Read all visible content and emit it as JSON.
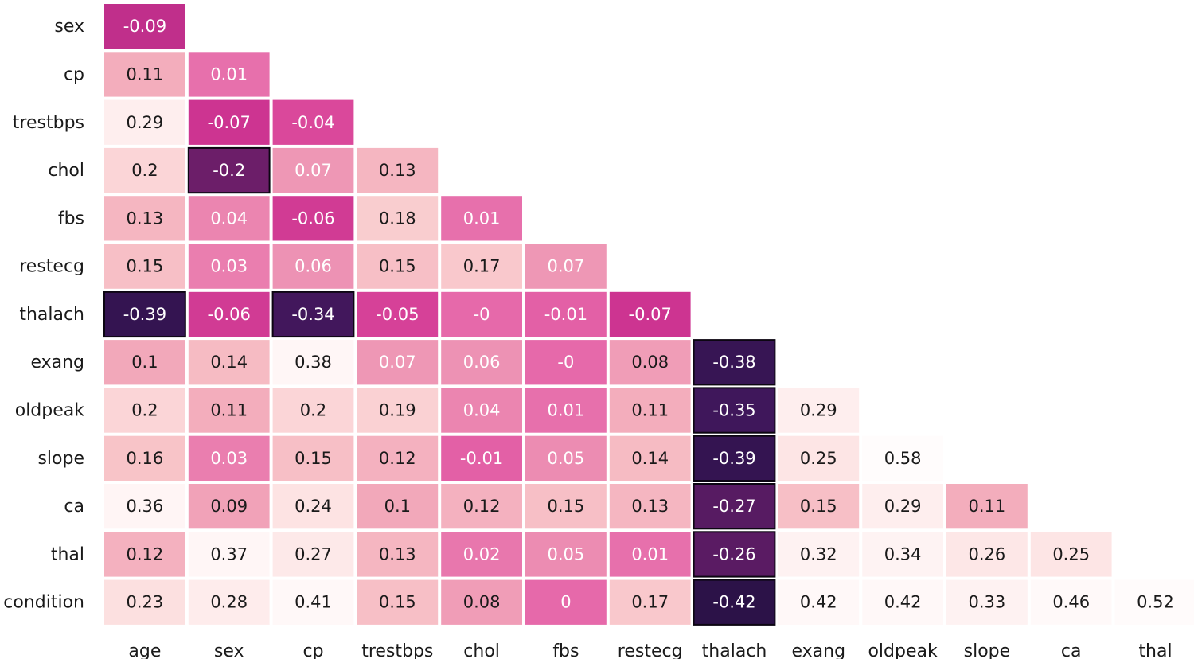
{
  "chart_data": {
    "type": "heatmap",
    "title": "",
    "xlabel": "",
    "ylabel": "",
    "layout": "lower-triangle",
    "row_labels": [
      "sex",
      "cp",
      "trestbps",
      "chol",
      "fbs",
      "restecg",
      "thalach",
      "exang",
      "oldpeak",
      "slope",
      "ca",
      "thal",
      "condition"
    ],
    "col_labels": [
      "age",
      "sex",
      "cp",
      "trestbps",
      "chol",
      "fbs",
      "restecg",
      "thalach",
      "exang",
      "oldpeak",
      "slope",
      "ca",
      "thal"
    ],
    "cells": [
      [
        "-0.09"
      ],
      [
        "0.11",
        "0.01"
      ],
      [
        "0.29",
        "-0.07",
        "-0.04"
      ],
      [
        "0.2",
        "-0.2",
        "0.07",
        "0.13"
      ],
      [
        "0.13",
        "0.04",
        "-0.06",
        "0.18",
        "0.01"
      ],
      [
        "0.15",
        "0.03",
        "0.06",
        "0.15",
        "0.17",
        "0.07"
      ],
      [
        "-0.39",
        "-0.06",
        "-0.34",
        "-0.05",
        "-0",
        "-0.01",
        "-0.07"
      ],
      [
        "0.1",
        "0.14",
        "0.38",
        "0.07",
        "0.06",
        "-0",
        "0.08",
        "-0.38"
      ],
      [
        "0.2",
        "0.11",
        "0.2",
        "0.19",
        "0.04",
        "0.01",
        "0.11",
        "-0.35",
        "0.29"
      ],
      [
        "0.16",
        "0.03",
        "0.15",
        "0.12",
        "-0.01",
        "0.05",
        "0.14",
        "-0.39",
        "0.25",
        "0.58"
      ],
      [
        "0.36",
        "0.09",
        "0.24",
        "0.1",
        "0.12",
        "0.15",
        "0.13",
        "-0.27",
        "0.15",
        "0.29",
        "0.11"
      ],
      [
        "0.12",
        "0.37",
        "0.27",
        "0.13",
        "0.02",
        "0.05",
        "0.01",
        "-0.26",
        "0.32",
        "0.34",
        "0.26",
        "0.25"
      ],
      [
        "0.23",
        "0.28",
        "0.41",
        "0.15",
        "0.08",
        "0",
        "0.17",
        "-0.42",
        "0.42",
        "0.42",
        "0.33",
        "0.46",
        "0.52"
      ]
    ],
    "colormap": "RdPu-style diverging (dark purple = -0.42 ... magenta ~ 0 ... near-white = 0.58)",
    "value_range": [
      -0.42,
      0.58
    ]
  }
}
